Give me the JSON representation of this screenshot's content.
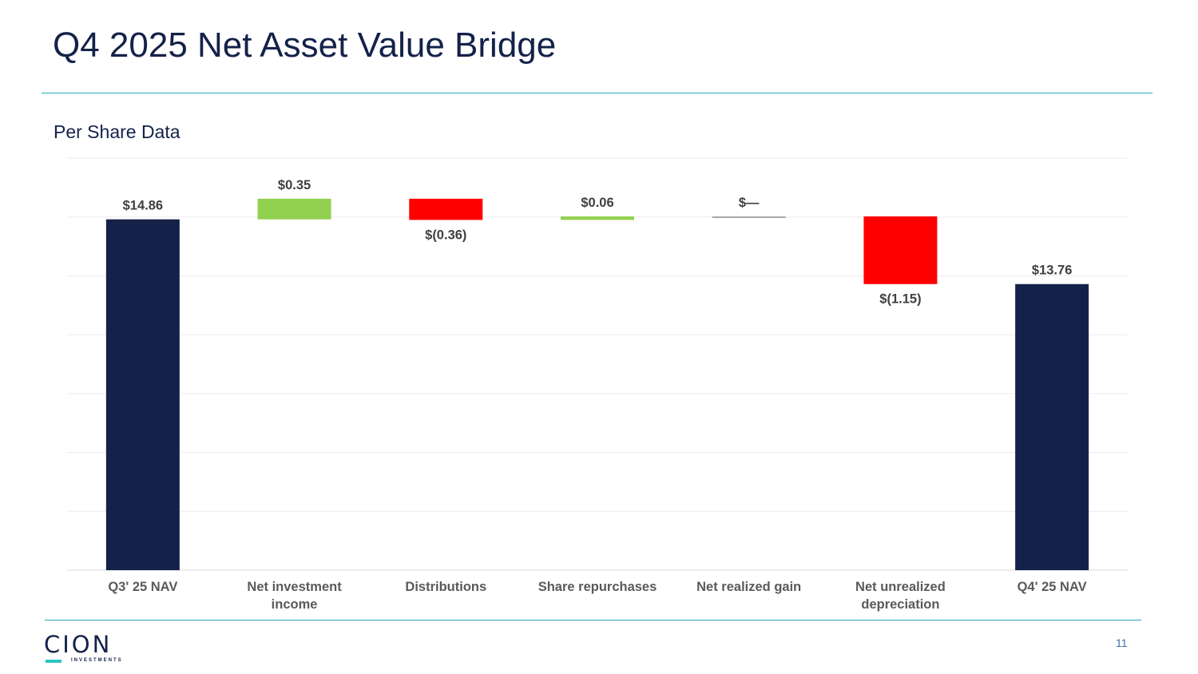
{
  "slide": {
    "title": "Q4 2025 Net Asset Value Bridge",
    "subtitle": "Per Share Data",
    "page_number": "11"
  },
  "logo": {
    "name": "CION",
    "tagline": "INVESTMENTS"
  },
  "colors": {
    "navy": "#14224a",
    "increase": "#92d050",
    "decrease": "#ff0000",
    "neutral": "#a6a6a6",
    "rule": "#2aa6b6"
  },
  "chart_data": {
    "type": "waterfall",
    "title": "",
    "xlabel": "",
    "ylabel": "",
    "ylim": [
      8.9,
      15.9
    ],
    "grid": true,
    "legend": "none",
    "categories": [
      "Q3' 25 NAV",
      "Net investment income",
      "Distributions",
      "Share repurchases",
      "Net realized gain",
      "Net unrealized depreciation",
      "Q4' 25 NAV"
    ],
    "category_lines": [
      [
        "Q3' 25 NAV"
      ],
      [
        "Net investment",
        "income"
      ],
      [
        "Distributions"
      ],
      [
        "Share repurchases"
      ],
      [
        "Net realized gain"
      ],
      [
        "Net unrealized",
        "depreciation"
      ],
      [
        "Q4' 25 NAV"
      ]
    ],
    "kinds": [
      "total",
      "increase",
      "decrease",
      "increase",
      "neutral",
      "decrease",
      "total"
    ],
    "values": [
      14.86,
      0.35,
      -0.36,
      0.06,
      0.0,
      -1.15,
      13.76
    ],
    "labels": [
      "$14.86",
      "$0.35",
      "$(0.36)",
      "$0.06",
      "$—",
      "$(1.15)",
      "$13.76"
    ]
  }
}
